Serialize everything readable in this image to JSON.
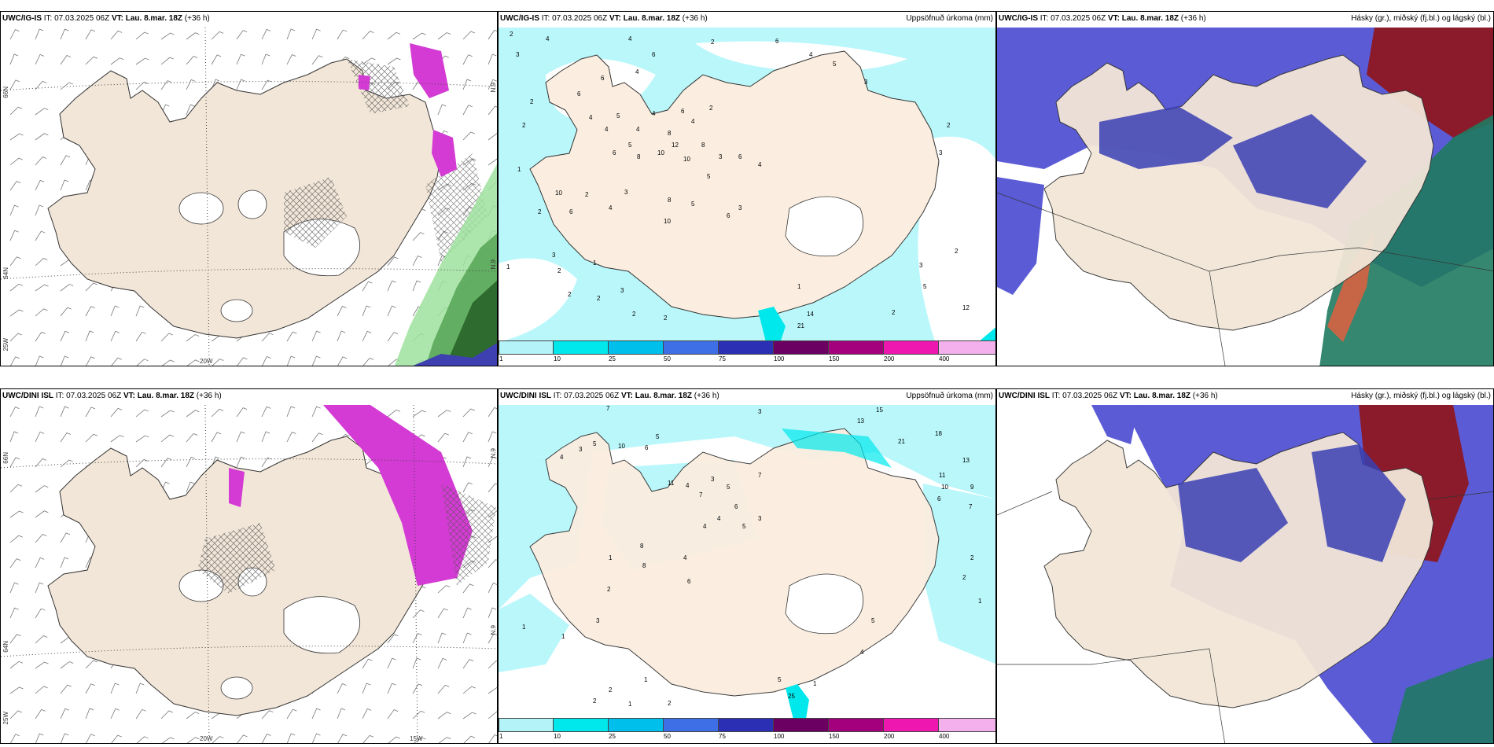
{
  "panels": [
    {
      "id": "p1",
      "model": "UWC/IG-IS",
      "it": "IT: 07.03.2025 06Z",
      "vt_label": "VT:",
      "vt": "Lau. 8.mar. 18Z",
      "lead": "(+36 h)",
      "right": ""
    },
    {
      "id": "p2",
      "model": "UWC/IG-IS",
      "it": "IT: 07.03.2025 06Z",
      "vt_label": "VT:",
      "vt": "Lau. 8.mar. 18Z",
      "lead": "(+36 h)",
      "right": "Uppsöfnuð úrkoma (mm)"
    },
    {
      "id": "p3",
      "model": "UWC/IG-IS",
      "it": "IT: 07.03.2025 06Z",
      "vt_label": "VT:",
      "vt": "Lau. 8.mar. 18Z",
      "lead": "(+36 h)",
      "right": "Hásky (gr.), miðský (fj.bl.) og lágský (bl.)"
    },
    {
      "id": "p4",
      "model": "UWC/DINI ISL",
      "it": "IT: 07.03.2025 06Z",
      "vt_label": "VT:",
      "vt": "Lau. 8.mar. 18Z",
      "lead": "(+36 h)",
      "right": ""
    },
    {
      "id": "p5",
      "model": "UWC/DINI ISL",
      "it": "IT: 07.03.2025 06Z",
      "vt_label": "VT:",
      "vt": "Lau. 8.mar. 18Z",
      "lead": "(+36 h)",
      "right": "Uppsöfnuð úrkoma (mm)"
    },
    {
      "id": "p6",
      "model": "UWC/DINI ISL",
      "it": "IT: 07.03.2025 06Z",
      "vt_label": "VT:",
      "vt": "Lau. 8.mar. 18Z",
      "lead": "(+36 h)",
      "right": "Hásky (gr.), miðský (fj.bl.) og lágský (bl.)"
    }
  ],
  "axes": {
    "lat66": "66N",
    "lat64": "64N",
    "lon25": "25W",
    "lon20": "20W",
    "lon15": "15W",
    "lat_e1": "N.9",
    "lat_e2": "N.9"
  },
  "legend": {
    "ticks": [
      "1",
      "10",
      "25",
      "50",
      "75",
      "100",
      "150",
      "200",
      "400"
    ],
    "colors": [
      "#b4f4f8",
      "#00e8ec",
      "#00bfea",
      "#3e6fe6",
      "#2a2fb4",
      "#6b0062",
      "#a4007e",
      "#ee18b0",
      "#f4b0ec"
    ]
  },
  "colors": {
    "land": "#f2e6d8",
    "precip_light": "#b9f7fb",
    "cloud_high": "#5b5bd6",
    "cloud_dark": "#3a3fb3",
    "sea_green": "#1f7a5f",
    "red_high": "#8b1a2b",
    "magenta": "#d43bd4",
    "green_light": "#9fe29f",
    "green_dark": "#2e6b2e"
  },
  "precip_top": [
    "2",
    "4",
    "3",
    "4",
    "2",
    "6",
    "4",
    "6",
    "6",
    "4",
    "4",
    "5",
    "4",
    "4",
    "8",
    "4",
    "2",
    "6",
    "2",
    "5",
    "6",
    "8",
    "10",
    "12",
    "10",
    "8",
    "3",
    "5",
    "6",
    "4",
    "6",
    "4",
    "5",
    "3",
    "2",
    "1",
    "1",
    "10",
    "6",
    "2",
    "2",
    "4",
    "3",
    "8",
    "10",
    "5",
    "6",
    "3",
    "3",
    "2",
    "1",
    "2",
    "2",
    "2",
    "3",
    "14",
    "21",
    "12",
    "2",
    "3",
    "2",
    "1",
    "2",
    "5",
    "3",
    "2"
  ],
  "precip_bottom": [
    "7",
    "3",
    "3",
    "4",
    "5",
    "10",
    "5",
    "6",
    "11",
    "4",
    "7",
    "3",
    "5",
    "6",
    "4",
    "8",
    "1",
    "4",
    "6",
    "4",
    "5",
    "3",
    "7",
    "15",
    "13",
    "21",
    "18",
    "13",
    "11",
    "9",
    "10",
    "7",
    "6",
    "2",
    "2",
    "1",
    "1",
    "1",
    "25",
    "5",
    "4",
    "5",
    "2",
    "2",
    "1",
    "1",
    "2",
    "3",
    "2",
    "1",
    "8"
  ]
}
